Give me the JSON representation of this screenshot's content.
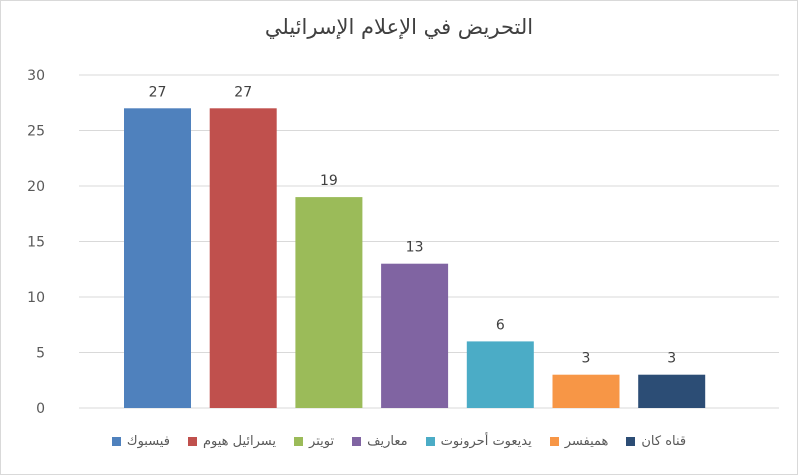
{
  "chart_data": {
    "type": "bar",
    "title": "التحريض في الإعلام الإسرائيلي",
    "categories": [
      "فيسبوك",
      "يسرائيل هيوم",
      "تويتر",
      "معاريف",
      "يديعوت أحرونوت",
      "هميفسر",
      "قناه كان"
    ],
    "values": [
      27,
      27,
      19,
      13,
      6,
      3,
      3
    ],
    "colors": [
      "#4f81bd",
      "#c0504d",
      "#9bbb59",
      "#8064a2",
      "#4bacc6",
      "#f79646",
      "#2c4d75"
    ],
    "ylim": [
      0,
      30
    ],
    "yticks": [
      0,
      5,
      10,
      15,
      20,
      25,
      30
    ],
    "grid": true,
    "legend_position": "bottom",
    "xlabel": "",
    "ylabel": ""
  }
}
